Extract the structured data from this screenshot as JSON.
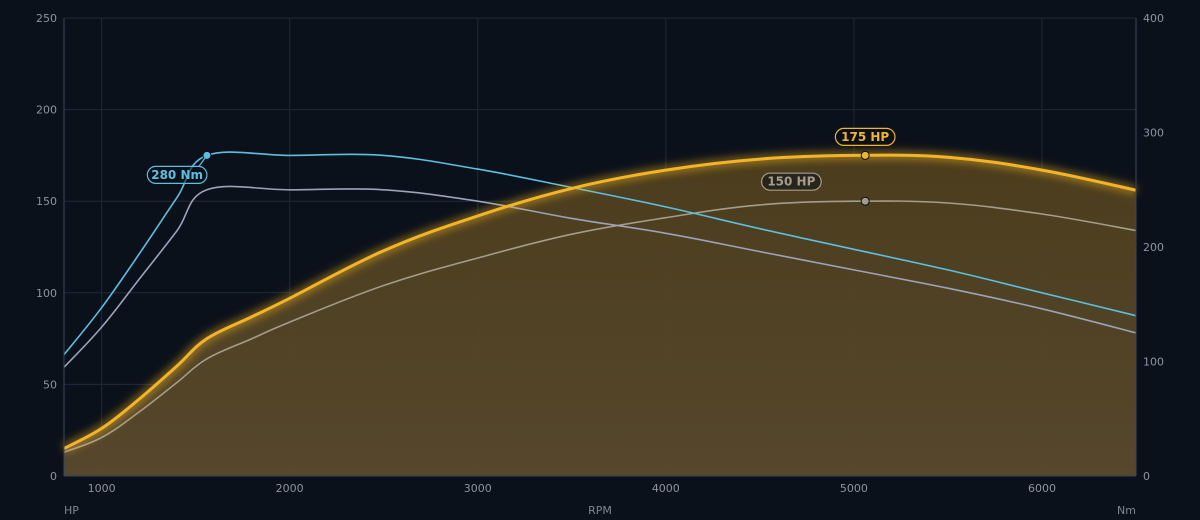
{
  "chart_data": {
    "type": "line",
    "title": "",
    "xlabel": "RPM",
    "ylabel_left": "HP",
    "ylabel_right": "Nm",
    "xlim": [
      800,
      6500
    ],
    "ylim_left": [
      0,
      250
    ],
    "ylim_right": [
      0,
      400
    ],
    "x_ticks": [
      1000,
      2000,
      3000,
      4000,
      5000,
      6000
    ],
    "y_ticks_left": [
      0,
      50,
      100,
      150,
      200,
      250
    ],
    "y_ticks_right": [
      0,
      100,
      200,
      300,
      400
    ],
    "grid": true,
    "series": [
      {
        "axis": "left",
        "color": "#f4b428",
        "filled": true,
        "x": [
          800,
          1000,
          1200,
          1400,
          1560,
          1800,
          2000,
          2500,
          3000,
          3500,
          4000,
          4500,
          5000,
          5500,
          6000,
          6500
        ],
        "y": [
          15,
          26,
          42,
          60,
          75,
          87,
          97,
          123,
          142,
          157,
          167,
          173,
          175,
          174,
          167,
          156
        ]
      },
      {
        "axis": "left",
        "color": "#a39d8c",
        "filled": false,
        "x": [
          800,
          1000,
          1200,
          1400,
          1560,
          1800,
          2000,
          2500,
          3000,
          3500,
          4000,
          4500,
          5000,
          5500,
          6000,
          6500
        ],
        "y": [
          13,
          21,
          35,
          51,
          64,
          75,
          84,
          104,
          119,
          132,
          141,
          148,
          150,
          149,
          143,
          134
        ]
      },
      {
        "axis": "right",
        "color": "#5bc0e0",
        "filled": false,
        "x": [
          800,
          1000,
          1200,
          1400,
          1560,
          2000,
          2500,
          3000,
          3500,
          4000,
          4500,
          5000,
          5500,
          6000,
          6500
        ],
        "y": [
          106,
          147,
          194,
          243,
          280,
          280,
          280,
          268,
          252,
          235,
          216,
          198,
          180,
          160,
          140
        ]
      },
      {
        "axis": "right",
        "color": "#9aa3b8",
        "filled": false,
        "x": [
          800,
          1000,
          1200,
          1400,
          1560,
          2000,
          2500,
          3000,
          3500,
          4000,
          4500,
          5000,
          5500,
          6000,
          6500
        ],
        "y": [
          95,
          130,
          172,
          214,
          250,
          250,
          250,
          240,
          225,
          212,
          196,
          180,
          164,
          146,
          125
        ]
      }
    ],
    "annotations": [
      {
        "text": "280 Nm",
        "axis": "right",
        "x": 1560,
        "y": 280,
        "color": "#5bc0e0",
        "placement": "below-left"
      },
      {
        "text": "175 HP",
        "axis": "left",
        "x": 5060,
        "y": 175,
        "color": "#f4b428",
        "placement": "above"
      },
      {
        "text": "150 HP",
        "axis": "left",
        "x": 5060,
        "y": 150,
        "color": "#a39d8c",
        "placement": "above-left"
      }
    ]
  }
}
